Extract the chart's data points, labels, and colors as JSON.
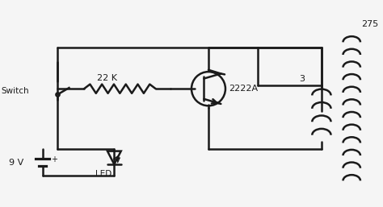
{
  "bg_color": "#f5f5f5",
  "line_color": "#1a1a1a",
  "lw": 1.8,
  "fig_width": 4.74,
  "fig_height": 2.57,
  "labels": {
    "resistor": "22 K",
    "transistor": "2222A",
    "battery": "9 V",
    "switch": "Switch",
    "led": "LED",
    "coil_inner": "3",
    "coil_outer": "275"
  }
}
